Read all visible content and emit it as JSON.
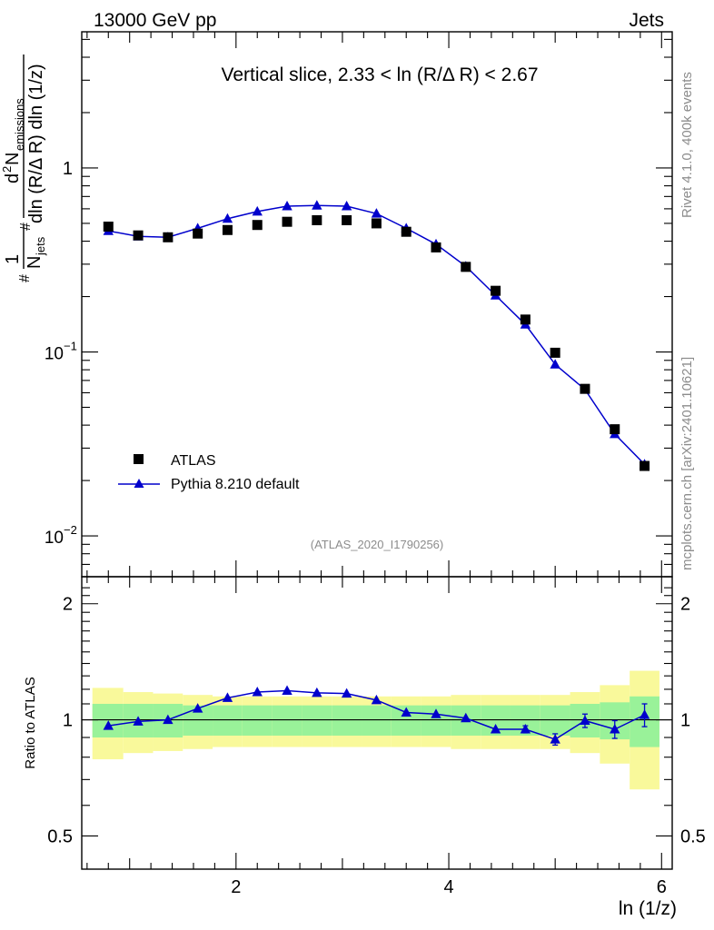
{
  "header": {
    "left": "13000 GeV pp",
    "right": "Jets"
  },
  "side_labels": {
    "rivet": "Rivet 4.1.0,  400k events",
    "mcplots": "mcplots.cern.ch [arXiv:2401.10621]"
  },
  "colors": {
    "data": "#000000",
    "mc": "#0000cc",
    "band_inner": "#99f299",
    "band_outer": "#f9f99b"
  },
  "chart_data": {
    "type": "scatter",
    "title": "Vertical slice, 2.33 < ln (R/Δ R) < 2.67",
    "analysis_tag": "(ATLAS_2020_I1790256)",
    "xlabel": "ln (1/z)",
    "ylabel_main": "1/N_jets d²N_emissions / dln (R/Δ R) dln (1/z)",
    "ylabel_main_parts": {
      "prefix": "#",
      "one": "1",
      "njets": "N",
      "njets_sub": "jets",
      "hash2": "#",
      "numerator": "d",
      "numerator_sup": "2",
      "numerator_n": "N",
      "numerator_sub": "emissions",
      "denominator": "dln (R/Δ R) dln (1/z)"
    },
    "ylabel_ratio": "Ratio to ATLAS",
    "xlim": [
      0.55,
      6.1
    ],
    "ylim_main": [
      0.006,
      5.5
    ],
    "ylim_ratio": [
      0.41,
      2.35
    ],
    "yscale": "log",
    "x_ticks": [
      {
        "value": 2,
        "label": "2"
      },
      {
        "value": 4,
        "label": "4"
      },
      {
        "value": 6,
        "label": "6"
      }
    ],
    "y_ticks_main": [
      {
        "value": 1,
        "label": "1"
      },
      {
        "value": 0.1,
        "label": "10",
        "sup": "−1"
      },
      {
        "value": 0.01,
        "label": "10",
        "sup": "−2"
      }
    ],
    "y_ticks_ratio": [
      {
        "value": 0.5,
        "label": "0.5"
      },
      {
        "value": 1,
        "label": "1"
      },
      {
        "value": 2,
        "label": "2"
      }
    ],
    "legend_position": "bottom-left",
    "x": [
      0.8,
      1.08,
      1.36,
      1.64,
      1.92,
      2.2,
      2.48,
      2.76,
      3.04,
      3.32,
      3.6,
      3.88,
      4.16,
      4.44,
      4.72,
      5.0,
      5.28,
      5.56,
      5.84
    ],
    "bin_edges": [
      0.65,
      0.94,
      1.22,
      1.5,
      1.78,
      2.06,
      2.34,
      2.62,
      2.9,
      3.18,
      3.46,
      3.74,
      4.02,
      4.3,
      4.58,
      4.86,
      5.14,
      5.42,
      5.7,
      5.98
    ],
    "series": [
      {
        "name": "ATLAS",
        "marker": "square",
        "values": [
          0.48,
          0.43,
          0.42,
          0.44,
          0.46,
          0.49,
          0.51,
          0.52,
          0.52,
          0.5,
          0.45,
          0.37,
          0.29,
          0.215,
          0.15,
          0.099,
          0.063,
          0.038,
          0.024
        ],
        "band_inner_rel": [
          0.1,
          0.1,
          0.1,
          0.09,
          0.09,
          0.09,
          0.09,
          0.09,
          0.09,
          0.09,
          0.09,
          0.09,
          0.09,
          0.09,
          0.09,
          0.09,
          0.1,
          0.11,
          0.15
        ],
        "band_outer_rel": [
          0.21,
          0.18,
          0.17,
          0.16,
          0.15,
          0.15,
          0.15,
          0.15,
          0.15,
          0.15,
          0.15,
          0.15,
          0.16,
          0.16,
          0.16,
          0.16,
          0.18,
          0.23,
          0.34
        ]
      },
      {
        "name": "Pythia 8.210 default",
        "marker": "triangle",
        "values": [
          0.455,
          0.425,
          0.42,
          0.47,
          0.53,
          0.58,
          0.62,
          0.625,
          0.62,
          0.565,
          0.47,
          0.385,
          0.292,
          0.203,
          0.141,
          0.0855,
          0.0625,
          0.0358,
          0.0245
        ],
        "ratio": [
          0.965,
          0.99,
          1.0,
          1.07,
          1.14,
          1.18,
          1.19,
          1.175,
          1.17,
          1.125,
          1.045,
          1.035,
          1.01,
          0.945,
          0.945,
          0.89,
          0.995,
          0.945,
          1.03
        ],
        "ratio_err": [
          0,
          0,
          0,
          0,
          0,
          0,
          0,
          0,
          0,
          0,
          0,
          0,
          0,
          0,
          0.02,
          0.03,
          0.04,
          0.05,
          0.07
        ]
      }
    ]
  }
}
